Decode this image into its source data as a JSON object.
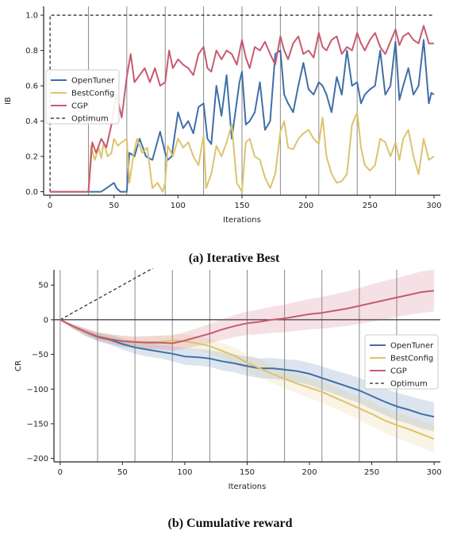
{
  "colors": {
    "OpenTuner": "#3f6fa8",
    "BestConfig": "#dcc46e",
    "CGP": "#c85a70",
    "Optimum": "#222222"
  },
  "chart_data": [
    {
      "type": "line",
      "caption": "(a) Iterative Best",
      "xlabel": "Iterations",
      "ylabel": "IB",
      "xlim": [
        -5,
        305
      ],
      "ylim": [
        -0.02,
        1.05
      ],
      "xticks": [
        0,
        50,
        100,
        150,
        200,
        250,
        300
      ],
      "yticks": [
        0.0,
        0.2,
        0.4,
        0.6,
        0.8,
        1.0
      ],
      "ytick_labels": [
        "0.0",
        "0.2",
        "0.4",
        "0.6",
        "0.8",
        "1.0"
      ],
      "vlines": [
        30,
        60,
        90,
        120,
        150,
        180,
        210,
        240,
        270
      ],
      "legend": {
        "position": "center-left",
        "entries": [
          "OpenTuner",
          "BestConfig",
          "CGP",
          "Optimum"
        ]
      },
      "series": [
        {
          "name": "Optimum",
          "style": "dashed",
          "x": [
            0,
            0,
            2,
            300
          ],
          "y": [
            0,
            1.0,
            1.0,
            1.0
          ]
        },
        {
          "name": "OpenTuner",
          "x": [
            0,
            30,
            40,
            48,
            50,
            52,
            55,
            58,
            60,
            62,
            66,
            68,
            70,
            75,
            80,
            86,
            90,
            92,
            95,
            100,
            104,
            108,
            112,
            116,
            120,
            123,
            126,
            130,
            134,
            138,
            142,
            148,
            150,
            153,
            156,
            160,
            164,
            168,
            172,
            176,
            180,
            183,
            186,
            190,
            194,
            198,
            202,
            206,
            210,
            213,
            216,
            220,
            224,
            228,
            232,
            236,
            240,
            243,
            246,
            250,
            254,
            258,
            262,
            266,
            270,
            273,
            276,
            280,
            284,
            288,
            292,
            296,
            298,
            300
          ],
          "y": [
            0,
            0,
            0,
            0.04,
            0.05,
            0.02,
            0.0,
            0.0,
            0.0,
            0.22,
            0.2,
            0.25,
            0.3,
            0.2,
            0.18,
            0.34,
            0.22,
            0.18,
            0.2,
            0.45,
            0.36,
            0.4,
            0.33,
            0.48,
            0.5,
            0.3,
            0.27,
            0.6,
            0.43,
            0.66,
            0.3,
            0.62,
            0.68,
            0.38,
            0.4,
            0.45,
            0.62,
            0.35,
            0.4,
            0.78,
            0.8,
            0.55,
            0.5,
            0.45,
            0.6,
            0.73,
            0.58,
            0.55,
            0.62,
            0.6,
            0.55,
            0.45,
            0.65,
            0.55,
            0.8,
            0.6,
            0.62,
            0.5,
            0.55,
            0.58,
            0.6,
            0.8,
            0.55,
            0.6,
            0.85,
            0.52,
            0.6,
            0.7,
            0.55,
            0.6,
            0.86,
            0.5,
            0.56,
            0.55
          ]
        },
        {
          "name": "BestConfig",
          "x": [
            0,
            30,
            32,
            35,
            38,
            40,
            42,
            45,
            48,
            50,
            53,
            56,
            60,
            62,
            65,
            68,
            72,
            76,
            80,
            84,
            88,
            90,
            92,
            96,
            100,
            104,
            108,
            112,
            116,
            120,
            122,
            126,
            130,
            134,
            138,
            142,
            146,
            150,
            153,
            156,
            160,
            164,
            168,
            172,
            176,
            180,
            183,
            186,
            190,
            194,
            198,
            202,
            206,
            210,
            213,
            216,
            220,
            224,
            228,
            232,
            236,
            240,
            243,
            246,
            250,
            254,
            258,
            262,
            266,
            270,
            273,
            276,
            280,
            284,
            288,
            292,
            296,
            300
          ],
          "y": [
            0,
            0.0,
            0.26,
            0.18,
            0.25,
            0.19,
            0.28,
            0.2,
            0.22,
            0.3,
            0.26,
            0.28,
            0.3,
            0.05,
            0.2,
            0.3,
            0.22,
            0.25,
            0.02,
            0.05,
            0.0,
            0.05,
            0.26,
            0.2,
            0.3,
            0.25,
            0.28,
            0.2,
            0.15,
            0.32,
            0.02,
            0.1,
            0.26,
            0.2,
            0.28,
            0.38,
            0.05,
            0.0,
            0.28,
            0.3,
            0.2,
            0.18,
            0.08,
            0.02,
            0.1,
            0.34,
            0.4,
            0.25,
            0.24,
            0.3,
            0.33,
            0.35,
            0.3,
            0.27,
            0.42,
            0.2,
            0.1,
            0.05,
            0.06,
            0.1,
            0.38,
            0.45,
            0.25,
            0.15,
            0.12,
            0.15,
            0.3,
            0.28,
            0.2,
            0.28,
            0.18,
            0.3,
            0.35,
            0.2,
            0.1,
            0.3,
            0.18,
            0.2
          ]
        },
        {
          "name": "CGP",
          "x": [
            0,
            30,
            33,
            36,
            40,
            44,
            48,
            52,
            56,
            60,
            63,
            66,
            70,
            74,
            78,
            82,
            86,
            90,
            93,
            96,
            100,
            104,
            108,
            112,
            116,
            120,
            123,
            126,
            130,
            134,
            138,
            142,
            146,
            150,
            153,
            156,
            160,
            164,
            168,
            172,
            176,
            180,
            183,
            186,
            190,
            194,
            198,
            202,
            206,
            210,
            213,
            216,
            220,
            224,
            228,
            232,
            236,
            240,
            243,
            246,
            250,
            254,
            258,
            262,
            266,
            270,
            273,
            276,
            280,
            284,
            288,
            292,
            296,
            300
          ],
          "y": [
            0,
            0,
            0.28,
            0.22,
            0.3,
            0.25,
            0.38,
            0.55,
            0.42,
            0.65,
            0.78,
            0.62,
            0.66,
            0.7,
            0.62,
            0.7,
            0.6,
            0.62,
            0.8,
            0.7,
            0.75,
            0.72,
            0.7,
            0.66,
            0.78,
            0.82,
            0.7,
            0.68,
            0.8,
            0.75,
            0.8,
            0.78,
            0.72,
            0.86,
            0.76,
            0.7,
            0.82,
            0.8,
            0.85,
            0.78,
            0.72,
            0.88,
            0.8,
            0.75,
            0.84,
            0.88,
            0.78,
            0.8,
            0.76,
            0.9,
            0.82,
            0.8,
            0.86,
            0.88,
            0.78,
            0.82,
            0.8,
            0.9,
            0.84,
            0.8,
            0.86,
            0.9,
            0.82,
            0.78,
            0.85,
            0.92,
            0.83,
            0.88,
            0.9,
            0.86,
            0.84,
            0.94,
            0.84,
            0.84
          ]
        }
      ]
    },
    {
      "type": "line",
      "caption": "(b) Cumulative reward",
      "xlabel": "Iterations",
      "ylabel": "CR",
      "xlim": [
        -5,
        305
      ],
      "ylim": [
        -205,
        72
      ],
      "xticks": [
        0,
        50,
        100,
        150,
        200,
        250,
        300
      ],
      "yticks": [
        50,
        0,
        -50,
        -100,
        -150,
        -200
      ],
      "ytick_labels": [
        "50",
        "0",
        "−50",
        "−100",
        "−150",
        "−200"
      ],
      "vlines": [
        0,
        30,
        60,
        90,
        120,
        150,
        180,
        210,
        240,
        270
      ],
      "hline": 0,
      "legend": {
        "position": "center-right",
        "entries": [
          "OpenTuner",
          "BestConfig",
          "CGP",
          "Optimum"
        ]
      },
      "series": [
        {
          "name": "Optimum",
          "style": "dashed",
          "x": [
            0,
            85
          ],
          "y": [
            0,
            85
          ]
        },
        {
          "name": "OpenTuner",
          "x": [
            0,
            10,
            20,
            30,
            40,
            50,
            60,
            70,
            80,
            90,
            100,
            110,
            120,
            130,
            140,
            150,
            160,
            170,
            180,
            190,
            200,
            210,
            220,
            230,
            240,
            250,
            260,
            270,
            280,
            290,
            300
          ],
          "y": [
            0,
            -10,
            -18,
            -25,
            -29,
            -35,
            -40,
            -43,
            -46,
            -49,
            -53,
            -54,
            -56,
            -60,
            -63,
            -67,
            -70,
            -70,
            -72,
            -74,
            -78,
            -84,
            -90,
            -96,
            -102,
            -110,
            -118,
            -125,
            -130,
            -136,
            -140
          ],
          "band": [
            0,
            3,
            5,
            6,
            7,
            8,
            9,
            10,
            10,
            11,
            12,
            12,
            12,
            13,
            13,
            14,
            14,
            15,
            15,
            16,
            16,
            17,
            17,
            18,
            18,
            19,
            19,
            20,
            20,
            21,
            21
          ]
        },
        {
          "name": "BestConfig",
          "x": [
            0,
            10,
            20,
            30,
            40,
            50,
            60,
            70,
            80,
            90,
            100,
            110,
            120,
            130,
            140,
            150,
            160,
            170,
            180,
            190,
            200,
            210,
            220,
            230,
            240,
            250,
            260,
            270,
            280,
            290,
            300
          ],
          "y": [
            0,
            -10,
            -18,
            -24,
            -27,
            -31,
            -33,
            -32,
            -32,
            -30,
            -31,
            -34,
            -38,
            -45,
            -52,
            -62,
            -70,
            -78,
            -85,
            -92,
            -98,
            -104,
            -112,
            -120,
            -128,
            -136,
            -145,
            -152,
            -158,
            -165,
            -172
          ],
          "band": [
            0,
            3,
            5,
            6,
            7,
            8,
            8,
            9,
            9,
            10,
            10,
            10,
            11,
            11,
            12,
            12,
            13,
            13,
            14,
            14,
            15,
            15,
            16,
            16,
            17,
            17,
            18,
            18,
            19,
            19,
            20
          ]
        },
        {
          "name": "CGP",
          "x": [
            0,
            10,
            20,
            30,
            40,
            50,
            60,
            70,
            80,
            90,
            100,
            110,
            120,
            130,
            140,
            150,
            160,
            170,
            180,
            190,
            200,
            210,
            220,
            230,
            240,
            250,
            260,
            270,
            280,
            290,
            300
          ],
          "y": [
            0,
            -9,
            -17,
            -24,
            -28,
            -31,
            -32,
            -33,
            -33,
            -34,
            -30,
            -25,
            -20,
            -14,
            -9,
            -5,
            -3,
            0,
            2,
            5,
            8,
            10,
            13,
            16,
            20,
            24,
            28,
            32,
            36,
            40,
            42
          ],
          "band": [
            0,
            3,
            5,
            6,
            7,
            8,
            8,
            9,
            10,
            11,
            12,
            13,
            14,
            15,
            16,
            17,
            18,
            19,
            20,
            21,
            22,
            23,
            24,
            25,
            26,
            27,
            28,
            28,
            29,
            30,
            30
          ]
        }
      ]
    }
  ]
}
